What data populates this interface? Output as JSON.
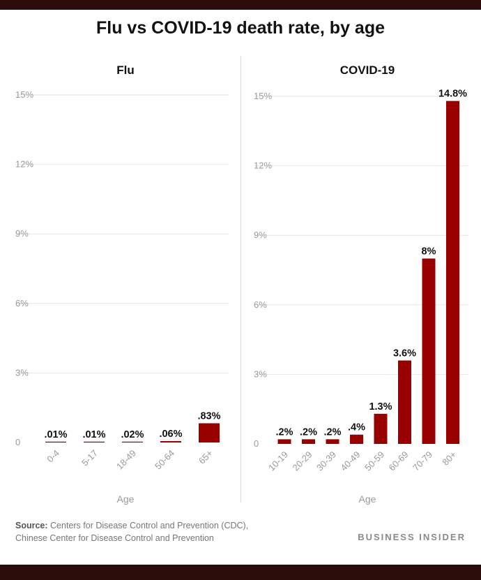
{
  "title": "Flu vs COVID-19 death rate, by age",
  "source": {
    "label": "Source:",
    "line1": "Centers for Disease Control and Prevention (CDC),",
    "line2": "Chinese Center for Disease Control and Prevention"
  },
  "brand": "BUSINESS INSIDER",
  "colors": {
    "bar": "#990000",
    "grid": "#e6e6e6",
    "axis_text": "#9a9a9a"
  },
  "chart_data": [
    {
      "type": "bar",
      "title": "Flu",
      "xlabel": "Age",
      "ylabel": "",
      "ylim": [
        0,
        15
      ],
      "yticks": [
        "0",
        "3%",
        "6%",
        "9%",
        "12%",
        "15%"
      ],
      "grid": true,
      "categories": [
        "0-4",
        "5-17",
        "18-49",
        "50-64",
        "65+"
      ],
      "values": [
        0.01,
        0.01,
        0.02,
        0.06,
        0.83
      ],
      "data_labels": [
        ".01%",
        ".01%",
        ".02%",
        ".06%",
        ".83%"
      ]
    },
    {
      "type": "bar",
      "title": "COVID-19",
      "xlabel": "Age",
      "ylabel": "",
      "ylim": [
        0,
        15
      ],
      "yticks": [
        "0",
        "3%",
        "6%",
        "9%",
        "12%",
        "15%"
      ],
      "grid": true,
      "categories": [
        "10-19",
        "20-29",
        "30-39",
        "40-49",
        "50-59",
        "60-69",
        "70-79",
        "80+"
      ],
      "values": [
        0.2,
        0.2,
        0.2,
        0.4,
        1.3,
        3.6,
        8,
        14.8
      ],
      "data_labels": [
        ".2%",
        ".2%",
        ".2%",
        ".4%",
        "1.3%",
        "3.6%",
        "8%",
        "14.8%"
      ]
    }
  ]
}
